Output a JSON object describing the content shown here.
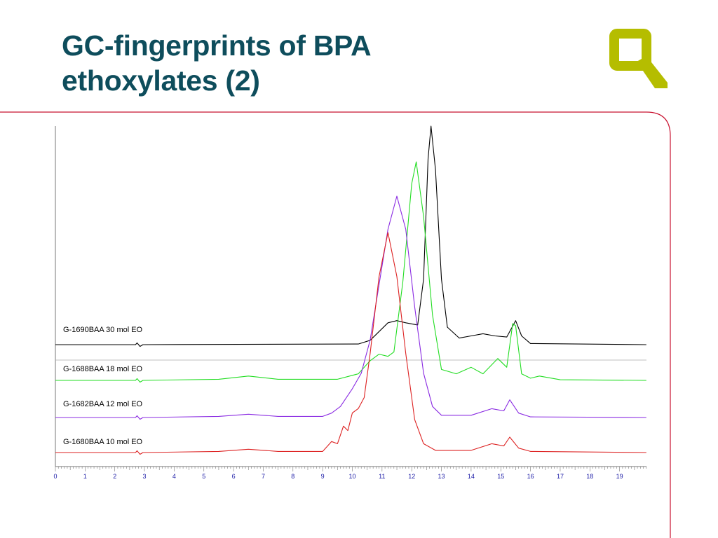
{
  "slide": {
    "title_line1": "GC-fingerprints of BPA",
    "title_line2": "ethoxylates (2)",
    "logo_icon": "q-logo-icon",
    "accent_color": "#c8102e",
    "title_color": "#0e4d5c",
    "logo_color": "#b5bd00"
  },
  "chart_data": {
    "type": "line",
    "title": "",
    "xlabel": "",
    "ylabel": "",
    "xlim": [
      0,
      19.9
    ],
    "x_ticks": [
      0,
      1,
      2,
      3,
      4,
      5,
      6,
      7,
      8,
      9,
      10,
      11,
      12,
      13,
      14,
      15,
      16,
      17,
      18,
      19
    ],
    "grid": false,
    "legend": "inline labels",
    "series": [
      {
        "name": "G-1690BAA 30 mol EO",
        "color": "#000000",
        "baseline": 0,
        "points": [
          [
            0,
            0
          ],
          [
            2.7,
            0
          ],
          [
            2.75,
            0.8
          ],
          [
            2.85,
            -0.8
          ],
          [
            2.95,
            0
          ],
          [
            10.2,
            0.3
          ],
          [
            10.6,
            2
          ],
          [
            10.9,
            6
          ],
          [
            11.2,
            10
          ],
          [
            11.5,
            11
          ],
          [
            11.8,
            10
          ],
          [
            12.2,
            9
          ],
          [
            12.4,
            30
          ],
          [
            12.55,
            85
          ],
          [
            12.65,
            100
          ],
          [
            12.8,
            80
          ],
          [
            13,
            30
          ],
          [
            13.2,
            8
          ],
          [
            13.6,
            3
          ],
          [
            14.0,
            4
          ],
          [
            14.4,
            5
          ],
          [
            14.8,
            4
          ],
          [
            15.2,
            3.5
          ],
          [
            15.5,
            11
          ],
          [
            15.7,
            4
          ],
          [
            16,
            0.5
          ],
          [
            19.9,
            0
          ]
        ]
      },
      {
        "name": "G-1688BAA 18 mol EO",
        "color": "#22dd22",
        "baseline": 0,
        "points": [
          [
            0,
            0
          ],
          [
            2.7,
            0
          ],
          [
            2.75,
            0.8
          ],
          [
            2.85,
            -0.8
          ],
          [
            2.95,
            0
          ],
          [
            5.5,
            0.5
          ],
          [
            6.5,
            2
          ],
          [
            7.5,
            0.5
          ],
          [
            9.5,
            0.5
          ],
          [
            10.2,
            3
          ],
          [
            10.6,
            9
          ],
          [
            10.9,
            12
          ],
          [
            11.2,
            11
          ],
          [
            11.4,
            13
          ],
          [
            11.7,
            45
          ],
          [
            12.0,
            90
          ],
          [
            12.15,
            100
          ],
          [
            12.4,
            75
          ],
          [
            12.7,
            30
          ],
          [
            13.0,
            5
          ],
          [
            13.5,
            3
          ],
          [
            14.0,
            6
          ],
          [
            14.4,
            3
          ],
          [
            14.9,
            10
          ],
          [
            15.2,
            6
          ],
          [
            15.4,
            26
          ],
          [
            15.5,
            25
          ],
          [
            15.7,
            3
          ],
          [
            16,
            1
          ],
          [
            16.3,
            2
          ],
          [
            17,
            0.3
          ],
          [
            19.9,
            0
          ]
        ]
      },
      {
        "name": "G-1682BAA 12 mol EO",
        "color": "#8a2be2",
        "baseline": 0,
        "points": [
          [
            0,
            0
          ],
          [
            2.7,
            0
          ],
          [
            2.75,
            0.8
          ],
          [
            2.85,
            -0.8
          ],
          [
            2.95,
            0
          ],
          [
            5.5,
            0.5
          ],
          [
            6.5,
            1.5
          ],
          [
            7.5,
            0.5
          ],
          [
            9.0,
            0.5
          ],
          [
            9.3,
            2
          ],
          [
            9.6,
            5
          ],
          [
            9.8,
            9
          ],
          [
            10.0,
            13
          ],
          [
            10.3,
            20
          ],
          [
            10.6,
            35
          ],
          [
            10.9,
            60
          ],
          [
            11.2,
            85
          ],
          [
            11.5,
            100
          ],
          [
            11.8,
            85
          ],
          [
            12.1,
            50
          ],
          [
            12.4,
            20
          ],
          [
            12.7,
            5
          ],
          [
            13.0,
            1
          ],
          [
            14.0,
            1
          ],
          [
            14.7,
            4
          ],
          [
            15.1,
            3
          ],
          [
            15.3,
            8
          ],
          [
            15.6,
            2
          ],
          [
            16,
            0.3
          ],
          [
            19.9,
            0
          ]
        ]
      },
      {
        "name": "G-1680BAA 10 mol EO",
        "color": "#dd2222",
        "baseline": 0,
        "points": [
          [
            0,
            0
          ],
          [
            2.7,
            0
          ],
          [
            2.75,
            0.8
          ],
          [
            2.85,
            -0.8
          ],
          [
            2.95,
            0
          ],
          [
            5.5,
            0.5
          ],
          [
            6.5,
            1.5
          ],
          [
            7.5,
            0.5
          ],
          [
            9.0,
            0.5
          ],
          [
            9.3,
            5
          ],
          [
            9.5,
            4
          ],
          [
            9.7,
            12
          ],
          [
            9.85,
            10
          ],
          [
            10.0,
            18
          ],
          [
            10.2,
            20
          ],
          [
            10.4,
            25
          ],
          [
            10.6,
            45
          ],
          [
            10.9,
            80
          ],
          [
            11.2,
            100
          ],
          [
            11.5,
            80
          ],
          [
            11.8,
            45
          ],
          [
            12.1,
            15
          ],
          [
            12.4,
            4
          ],
          [
            12.8,
            1
          ],
          [
            14.0,
            1
          ],
          [
            14.7,
            4
          ],
          [
            15.1,
            3
          ],
          [
            15.3,
            7
          ],
          [
            15.6,
            2
          ],
          [
            16,
            0.5
          ],
          [
            19.9,
            0
          ]
        ]
      }
    ]
  }
}
